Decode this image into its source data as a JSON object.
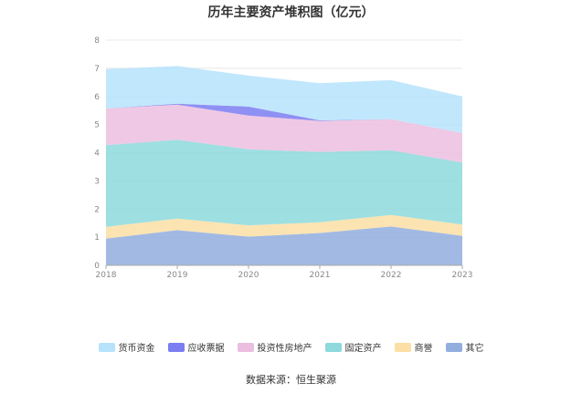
{
  "title": "历年主要资产堆积图（亿元）",
  "source": {
    "label": "数据来源：",
    "link_text": "恒生聚源"
  },
  "chart_data": {
    "type": "area",
    "stacked": true,
    "title": "历年主要资产堆积图（亿元）",
    "categories": [
      "2018",
      "2019",
      "2020",
      "2021",
      "2022",
      "2023"
    ],
    "ylim": [
      0,
      8
    ],
    "yticks": [
      0,
      1,
      2,
      3,
      4,
      5,
      6,
      7,
      8
    ],
    "grid": true,
    "legend_position": "bottom",
    "series": [
      {
        "name": "其它",
        "color": "#92aede",
        "values": [
          0.95,
          1.25,
          1.02,
          1.15,
          1.38,
          1.05
        ]
      },
      {
        "name": "商誉",
        "color": "#fbdfa4",
        "values": [
          0.42,
          0.41,
          0.4,
          0.38,
          0.41,
          0.4
        ]
      },
      {
        "name": "固定资产",
        "color": "#8dd9dc",
        "values": [
          2.9,
          2.8,
          2.7,
          2.5,
          2.3,
          2.2
        ]
      },
      {
        "name": "投资性房地产",
        "color": "#ebbedf",
        "values": [
          1.3,
          1.25,
          1.2,
          1.1,
          1.1,
          1.05
        ]
      },
      {
        "name": "应收票据",
        "color": "#7b7df1",
        "values": [
          0.0,
          0.03,
          0.32,
          0.02,
          0.0,
          0.0
        ]
      },
      {
        "name": "货币资金",
        "color": "#b6e3fb",
        "values": [
          1.4,
          1.34,
          1.1,
          1.32,
          1.39,
          1.3
        ]
      }
    ]
  }
}
